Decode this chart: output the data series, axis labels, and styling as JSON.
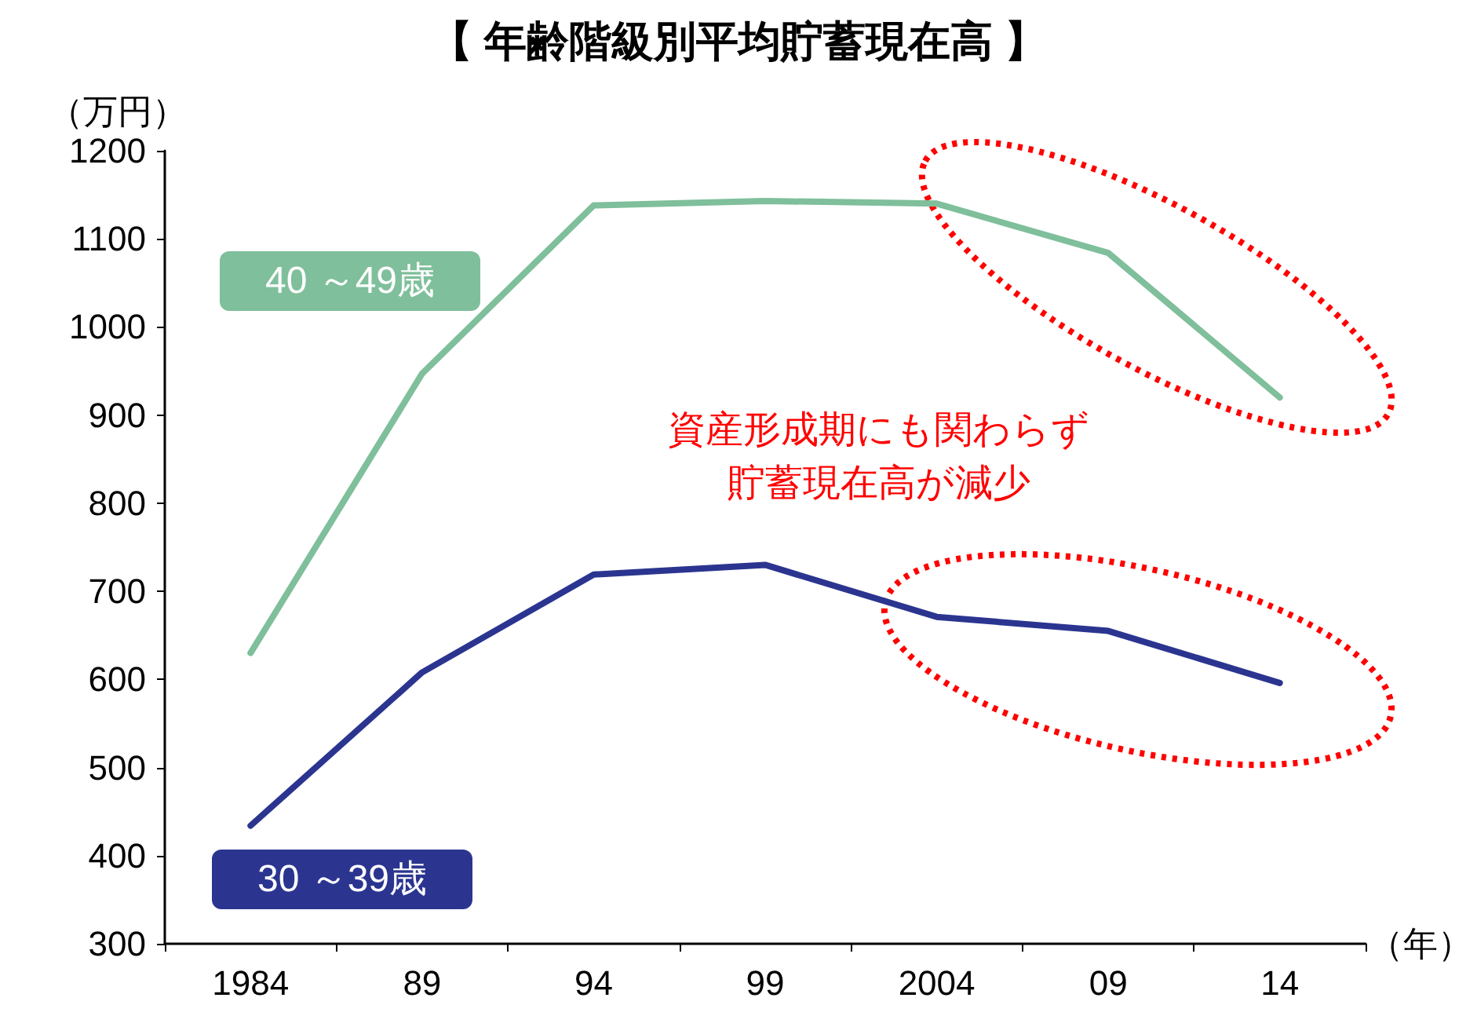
{
  "chart_data": {
    "type": "line",
    "title": "【 年齢階級別平均貯蓄現在高 】",
    "ylabel": "（万円）",
    "xlabel": "（年）",
    "categories": [
      "1984",
      "89",
      "94",
      "99",
      "2004",
      "09",
      "14"
    ],
    "series": [
      {
        "name": "40 ～49歳",
        "color": "#7fbf9b",
        "values": [
          630,
          947,
          1138,
          1143,
          1140,
          1084,
          920
        ]
      },
      {
        "name": "30 ～39歳",
        "color": "#2b3590",
        "values": [
          434,
          608,
          719,
          730,
          671,
          655,
          596
        ]
      }
    ],
    "ylim": [
      300,
      1200
    ],
    "yticks": [
      300,
      400,
      500,
      600,
      700,
      800,
      900,
      1000,
      1100,
      1200
    ],
    "annotations": [
      "資産形成期にも関わらず",
      "貯蓄現在高が減少"
    ],
    "grid": false,
    "legend": false,
    "marker": "none",
    "line_style": "solid"
  }
}
